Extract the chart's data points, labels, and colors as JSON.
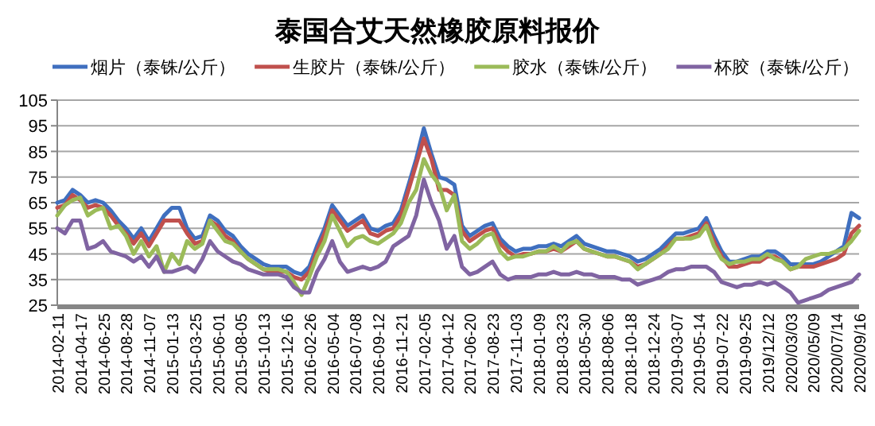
{
  "chart_data": {
    "type": "line",
    "title": "泰国合艾天然橡胶原料报价",
    "categories": [
      "2014-02-11",
      null,
      null,
      "2014-04-17",
      null,
      null,
      "2014-06-25",
      null,
      null,
      "2014-08-28",
      null,
      null,
      "2014-11-07",
      null,
      null,
      "2015-01-13",
      null,
      null,
      "2015-03-25",
      null,
      null,
      "2015-06-01",
      null,
      null,
      "2015-08-05",
      null,
      null,
      "2015-10-13",
      null,
      null,
      "2015-12-16",
      null,
      null,
      "2016-02-26",
      null,
      null,
      "2016-05-04",
      null,
      null,
      "2016-07-08",
      null,
      null,
      "2016-09-12",
      null,
      null,
      "2016-11-21",
      null,
      null,
      "2017-02-05",
      null,
      null,
      "2017-04-12",
      null,
      null,
      "2017-06-20",
      null,
      null,
      "2017-08-23",
      null,
      null,
      "2017-11-03",
      null,
      null,
      "2018-01-09",
      null,
      null,
      "2018-03-23",
      null,
      null,
      "2018-05-30",
      null,
      null,
      "2018-08-06",
      null,
      null,
      "2018-10-18",
      null,
      null,
      "2018-12-24",
      null,
      null,
      "2019-03-07",
      null,
      null,
      "2019-05-14",
      null,
      null,
      "2019-07-22",
      null,
      null,
      "2019-09-25",
      null,
      null,
      "2019/12/12",
      null,
      null,
      "2020/03/03",
      null,
      null,
      "2020/05/09",
      null,
      null,
      "2020/07/14",
      null,
      null,
      "2020/09/16"
    ],
    "series": [
      {
        "name": "烟片（泰铢/公斤）",
        "color": "#3f6fbf",
        "values": [
          65,
          66,
          70,
          68,
          65,
          66,
          65,
          62,
          58,
          55,
          51,
          55,
          50,
          55,
          60,
          63,
          63,
          55,
          51,
          52,
          60,
          58,
          54,
          52,
          48,
          45,
          43,
          41,
          40,
          40,
          40,
          38,
          37,
          40,
          48,
          55,
          64,
          60,
          56,
          58,
          60,
          55,
          54,
          56,
          57,
          62,
          72,
          82,
          94,
          84,
          75,
          74,
          72,
          56,
          52,
          54,
          56,
          57,
          51,
          48,
          46,
          47,
          47,
          48,
          48,
          49,
          48,
          50,
          52,
          49,
          48,
          47,
          46,
          46,
          45,
          44,
          42,
          43,
          45,
          47,
          50,
          53,
          53,
          54,
          55,
          59,
          52,
          46,
          42,
          42,
          43,
          44,
          44,
          46,
          46,
          44,
          41,
          41,
          41,
          41,
          42,
          44,
          46,
          48,
          61,
          59
        ]
      },
      {
        "name": "生胶片（泰铢/公斤）",
        "color": "#c0504d",
        "values": [
          63,
          64,
          68,
          66,
          63,
          64,
          63,
          60,
          56,
          53,
          49,
          53,
          48,
          53,
          58,
          58,
          58,
          53,
          49,
          50,
          58,
          56,
          52,
          50,
          46,
          43,
          41,
          39,
          38,
          38,
          38,
          36,
          35,
          38,
          46,
          53,
          62,
          58,
          54,
          56,
          58,
          53,
          52,
          54,
          55,
          60,
          70,
          80,
          90,
          82,
          70,
          70,
          68,
          54,
          50,
          52,
          54,
          55,
          49,
          46,
          44,
          45,
          45,
          46,
          46,
          47,
          46,
          48,
          50,
          47,
          46,
          45,
          44,
          44,
          43,
          42,
          40,
          41,
          43,
          45,
          48,
          51,
          51,
          52,
          53,
          57,
          50,
          44,
          40,
          40,
          41,
          42,
          42,
          44,
          44,
          42,
          39,
          40,
          40,
          40,
          41,
          42,
          43,
          45,
          53,
          56
        ]
      },
      {
        "name": "胶水（泰铢/公斤）",
        "color": "#9bbb59",
        "values": [
          60,
          64,
          66,
          67,
          60,
          62,
          63,
          55,
          56,
          52,
          45,
          50,
          44,
          48,
          38,
          45,
          41,
          50,
          47,
          49,
          58,
          54,
          50,
          49,
          46,
          43,
          41,
          39,
          39,
          39,
          38,
          34,
          29,
          36,
          44,
          50,
          60,
          54,
          48,
          51,
          52,
          50,
          49,
          51,
          53,
          57,
          65,
          70,
          82,
          76,
          72,
          62,
          68,
          50,
          47,
          49,
          52,
          53,
          46,
          43,
          44,
          44,
          45,
          46,
          46,
          48,
          46,
          49,
          50,
          47,
          46,
          45,
          44,
          44,
          43,
          42,
          39,
          41,
          43,
          45,
          47,
          51,
          51,
          51,
          52,
          56,
          48,
          43,
          41,
          42,
          42,
          43,
          43,
          45,
          43,
          42,
          39,
          40,
          43,
          44,
          45,
          45,
          46,
          47,
          50,
          54
        ]
      },
      {
        "name": "杯胶（泰铢/公斤）",
        "color": "#8064a2",
        "values": [
          55,
          53,
          58,
          58,
          47,
          48,
          50,
          46,
          45,
          44,
          42,
          44,
          40,
          44,
          38,
          38,
          39,
          40,
          38,
          43,
          50,
          46,
          44,
          42,
          41,
          39,
          38,
          37,
          37,
          37,
          36,
          32,
          30,
          30,
          38,
          43,
          50,
          42,
          38,
          39,
          40,
          39,
          40,
          42,
          48,
          50,
          52,
          60,
          74,
          65,
          58,
          47,
          52,
          40,
          37,
          38,
          40,
          42,
          37,
          35,
          36,
          36,
          36,
          37,
          37,
          38,
          37,
          37,
          38,
          37,
          37,
          36,
          36,
          36,
          35,
          35,
          33,
          34,
          35,
          36,
          38,
          39,
          39,
          40,
          40,
          40,
          38,
          34,
          33,
          32,
          33,
          33,
          34,
          33,
          34,
          32,
          30,
          26,
          27,
          28,
          29,
          31,
          32,
          33,
          34,
          37
        ]
      }
    ],
    "ylim": [
      25,
      105
    ],
    "yticks": [
      25,
      35,
      45,
      55,
      65,
      75,
      85,
      95,
      105
    ],
    "grid": "y",
    "legend": "top",
    "marker": "none",
    "line_style": "solid"
  }
}
